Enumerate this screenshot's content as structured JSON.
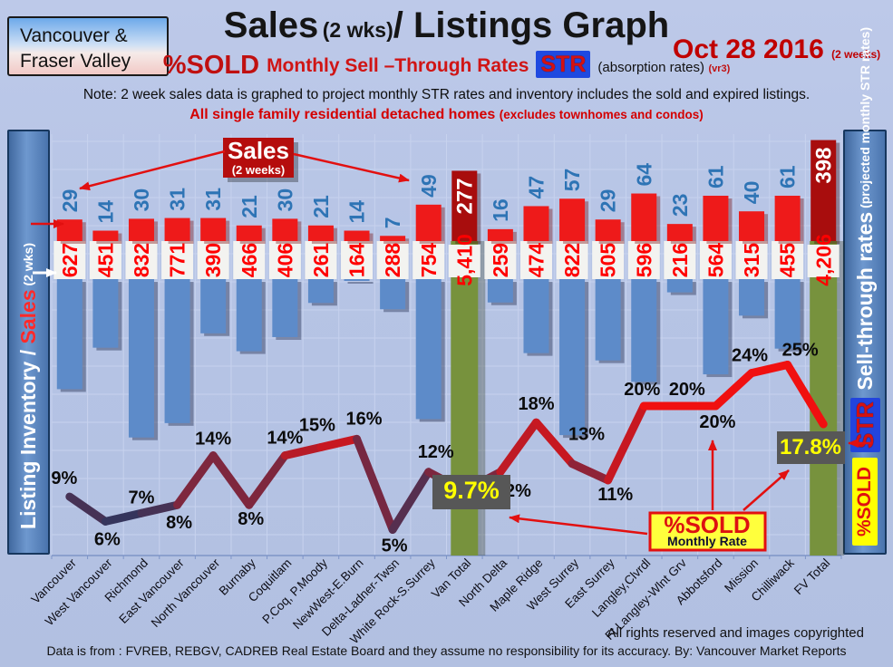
{
  "header": {
    "badge_line1": "Vancouver &",
    "badge_line2": "Fraser Valley",
    "title_main": "Sales",
    "title_paren": "(2 wks)",
    "title_rest": "/ Listings Graph",
    "date": "Oct 28 2016",
    "date_paren": "(2 weeks)",
    "subtitle_pct": "%SOLD",
    "subtitle_mid": "Monthly Sell –Through Rates",
    "subtitle_str": "STR",
    "subtitle_absorption": "(absorption rates)",
    "subtitle_vr": "(vr3)",
    "note": "Note: 2 week sales data is graphed to project monthly STR rates and inventory includes the sold and expired listings.",
    "subnote": "All single family residential detached homes",
    "subnote_paren": "(excludes townhomes and condos)"
  },
  "chart_data": {
    "type": "bar+line",
    "categories": [
      "Vancouver",
      "West Vancouver",
      "Richmond",
      "East Vancouver",
      "North Vancouver",
      "Burnaby",
      "Coquitlam",
      "P.Coq, P.Moody",
      "NewWest-E.Burn",
      "Delta-Ladner-Twsn",
      "White Rock-S.Surrey",
      "Van Total",
      "North Delta",
      "Maple Ridge",
      "West Surrey",
      "East Surrey",
      "Langley,Clvrdl",
      "Ft Langley-Wlnt Grv",
      "Abbotsford",
      "Mission",
      "Chilliwack",
      "FV Total"
    ],
    "series": [
      {
        "name": "Sales (2 weeks)",
        "values": [
          29,
          14,
          30,
          31,
          31,
          21,
          30,
          21,
          14,
          7,
          49,
          277,
          16,
          47,
          57,
          29,
          64,
          23,
          61,
          40,
          61,
          398
        ]
      },
      {
        "name": "Listing Inventory",
        "values": [
          627,
          451,
          832,
          771,
          390,
          466,
          406,
          261,
          164,
          288,
          754,
          5410,
          259,
          474,
          822,
          505,
          596,
          216,
          564,
          315,
          455,
          4206
        ]
      },
      {
        "name": "%SOLD Monthly Sell-Through Rate",
        "values": [
          9,
          6,
          7,
          8,
          14,
          8,
          14,
          15,
          16,
          5,
          12,
          9.7,
          12,
          18,
          13,
          11,
          20,
          20,
          20,
          24,
          25,
          17.8
        ]
      }
    ],
    "listing_labels": [
      "627",
      "451",
      "832",
      "771",
      "390",
      "466",
      "406",
      "261",
      "164",
      "288",
      "754",
      "5,410",
      "259",
      "474",
      "822",
      "505",
      "596",
      "216",
      "564",
      "315",
      "455",
      "4,206"
    ],
    "sales_labels": [
      "29",
      "14",
      "30",
      "31",
      "31",
      "21",
      "30",
      "21",
      "14",
      "7",
      "49",
      "277",
      "16",
      "47",
      "57",
      "29",
      "64",
      "23",
      "61",
      "40",
      "61",
      "398"
    ],
    "pct_labels": [
      "9%",
      "6%",
      "7%",
      "8%",
      "14%",
      "8%",
      "14%",
      "15%",
      "16%",
      "5%",
      "12%",
      "9.7%",
      "12%",
      "18%",
      "13%",
      "11%",
      "20%",
      "20%",
      "20%",
      "24%",
      "25%",
      "17.8%"
    ],
    "total_indices": [
      11,
      21
    ],
    "axes": {
      "left_white": "Listing Inventory / ",
      "left_red": "Sales",
      "left_small": " (2  wks)",
      "right_main": "Sell-through rates",
      "right_small": "  (projected monthly STR rates)",
      "right_str_badge": "STR",
      "right_sold_badge": "%SOLD"
    },
    "annotations": {
      "sales_box_title": "Sales",
      "sales_box_sub": "(2 weeks)",
      "sold_box_title": "%SOLD",
      "sold_box_sub": "Monthly Rate",
      "van_total_rate": "9.7%",
      "fv_total_rate": "17.8%"
    },
    "colors": {
      "sales_bar": "#ee1a1a",
      "total_sales_bar": "#a80d0d",
      "listing_bar": "#5d8bc9",
      "total_listing_bar": "#77923d",
      "line_low": "#1d3a66",
      "line_high": "#f01010",
      "rate_box_bg": "#575757",
      "rate_box_text": "#ffff00",
      "sales_value_text": "#2e74b5",
      "listing_value_text": "#ff0000"
    },
    "layout_hints": {
      "grid": true,
      "line_axis_range": [
        0,
        50
      ],
      "line_in_lower_half": true
    }
  },
  "footer": {
    "rights": "All rights reserved and  images copyrighted",
    "source": "Data is from : FVREB, REBGV, CADREB Real Estate Board and they assume no responsibility for its accuracy. By: Vancouver Market Reports"
  }
}
